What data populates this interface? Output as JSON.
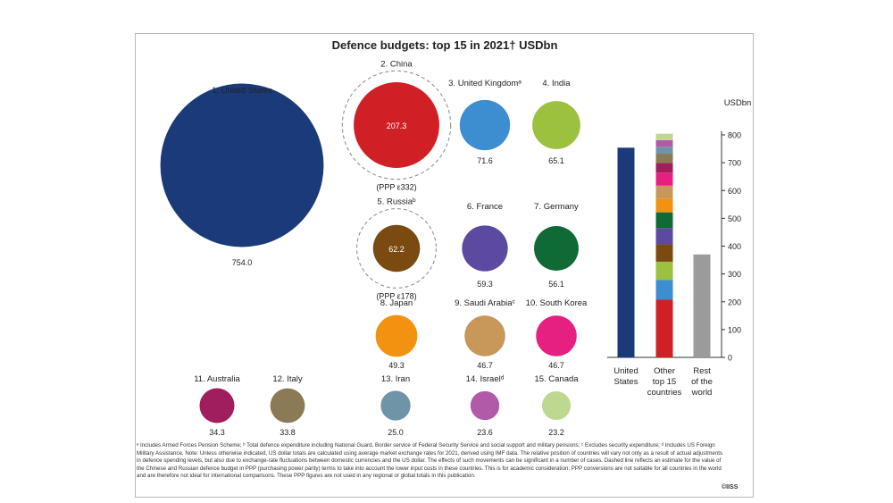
{
  "chart_data": [
    {
      "type": "bubble",
      "title": "Defence budgets: top 15 in 2021† USDbn",
      "bubbles": [
        {
          "label": "1. United States",
          "value": 754.0,
          "value_label": "754.0",
          "color": "#1b3a7a"
        },
        {
          "label": "2. China",
          "value": 207.3,
          "value_label": "207.3",
          "color": "#d11f26",
          "ppp_label": "(PPP ε332)"
        },
        {
          "label": "3. United Kingdomᵃ",
          "value": 71.6,
          "value_label": "71.6",
          "color": "#3d8ed1"
        },
        {
          "label": "4. India",
          "value": 65.1,
          "value_label": "65.1",
          "color": "#9bc13f"
        },
        {
          "label": "5. Russiaᵇ",
          "value": 62.2,
          "value_label": "62.2",
          "color": "#7a4a10",
          "ppp_label": "(PPP ε178)"
        },
        {
          "label": "6. France",
          "value": 59.3,
          "value_label": "59.3",
          "color": "#5b4aa0"
        },
        {
          "label": "7. Germany",
          "value": 56.1,
          "value_label": "56.1",
          "color": "#0f6a35"
        },
        {
          "label": "8. Japan",
          "value": 49.3,
          "value_label": "49.3",
          "color": "#f39210"
        },
        {
          "label": "9. Saudi Arabiaᶜ",
          "value": 46.7,
          "value_label": "46.7",
          "color": "#c8975a"
        },
        {
          "label": "10. South Korea",
          "value": 46.7,
          "value_label": "46.7",
          "color": "#e62081"
        },
        {
          "label": "11. Australia",
          "value": 34.3,
          "value_label": "34.3",
          "color": "#a01d5e"
        },
        {
          "label": "12. Italy",
          "value": 33.8,
          "value_label": "33.8",
          "color": "#8a7a55"
        },
        {
          "label": "13. Iran",
          "value": 25.0,
          "value_label": "25.0",
          "color": "#6f94a8"
        },
        {
          "label": "14. Israelᵈ",
          "value": 23.6,
          "value_label": "23.6",
          "color": "#b05aa8"
        },
        {
          "label": "15. Canada",
          "value": 23.2,
          "value_label": "23.2",
          "color": "#bfd88f"
        }
      ]
    },
    {
      "type": "bar",
      "ylabel": "USDbn",
      "ylim": [
        0,
        800
      ],
      "yticks": [
        0,
        100,
        200,
        300,
        400,
        500,
        600,
        700,
        800
      ],
      "categories": [
        "United States",
        "Other top 15 countries",
        "Rest of the world"
      ],
      "bars": [
        {
          "category": "United States",
          "value": 754.0,
          "color": "#1b3a7a"
        },
        {
          "category": "Other top 15 countries",
          "stacked": true,
          "segments": [
            {
              "name": "China",
              "value": 207.3,
              "color": "#d11f26"
            },
            {
              "name": "United Kingdom",
              "value": 71.6,
              "color": "#3d8ed1"
            },
            {
              "name": "India",
              "value": 65.1,
              "color": "#9bc13f"
            },
            {
              "name": "Russia",
              "value": 62.2,
              "color": "#7a4a10"
            },
            {
              "name": "France",
              "value": 59.3,
              "color": "#5b4aa0"
            },
            {
              "name": "Germany",
              "value": 56.1,
              "color": "#0f6a35"
            },
            {
              "name": "Japan",
              "value": 49.3,
              "color": "#f39210"
            },
            {
              "name": "Saudi Arabia",
              "value": 46.7,
              "color": "#c8975a"
            },
            {
              "name": "South Korea",
              "value": 46.7,
              "color": "#e62081"
            },
            {
              "name": "Australia",
              "value": 34.3,
              "color": "#a01d5e"
            },
            {
              "name": "Italy",
              "value": 33.8,
              "color": "#8a7a55"
            },
            {
              "name": "Iran",
              "value": 25.0,
              "color": "#6f94a8"
            },
            {
              "name": "Israel",
              "value": 23.6,
              "color": "#b05aa8"
            },
            {
              "name": "Canada",
              "value": 23.2,
              "color": "#bfd88f"
            }
          ]
        },
        {
          "category": "Rest of the world",
          "value": 370,
          "color": "#9b9b9b"
        }
      ]
    }
  ],
  "footnotes": "ᵃ Includes Armed Forces Pension Scheme; ᵇ Total defence expenditure including National Guard, Border service of Federal Security Service and social support and military pensions; ᶜ Excludes security expenditure; ᵈ Includes US Foreign Military Assistance. Note: Unless otherwise indicated, US dollar totals are calculated using average market exchange rates for 2021, derived using IMF data. The relative position of countries will vary not only as a result of actual adjustments in defence spending levels, but also due to exchange-rate fluctuations between domestic currencies and the US dollar. The effects of such movements can be significant in a number of cases. Dashed line reflects an estimate for the value of the Chinese and Russian defence budget in PPP (purchasing power parity) terms to take into account the lower input costs in these countries. This is for academic consideration; PPP conversions are not suitable for all countries in the world and are therefore not ideal for international comparisons. These PPP figures are not used in any regional or global totals in this publication.",
  "copyright": "©IISS"
}
